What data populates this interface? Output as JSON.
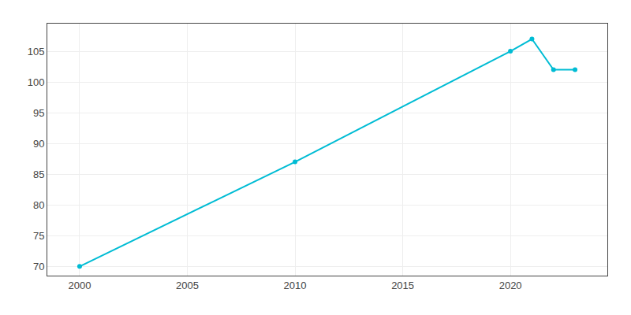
{
  "chart_data": {
    "type": "line",
    "x": [
      2000,
      2010,
      2020,
      2021,
      2022,
      2023
    ],
    "values": [
      70,
      87,
      105,
      107,
      102,
      102
    ],
    "color": "#00BCD4",
    "marker": "circle",
    "xlim": [
      1998.5,
      2024.5
    ],
    "ylim": [
      68.5,
      109.5
    ],
    "xticks": [
      2000,
      2005,
      2010,
      2015,
      2020
    ],
    "yticks": [
      70,
      75,
      80,
      85,
      90,
      95,
      100,
      105
    ],
    "grid": true
  }
}
